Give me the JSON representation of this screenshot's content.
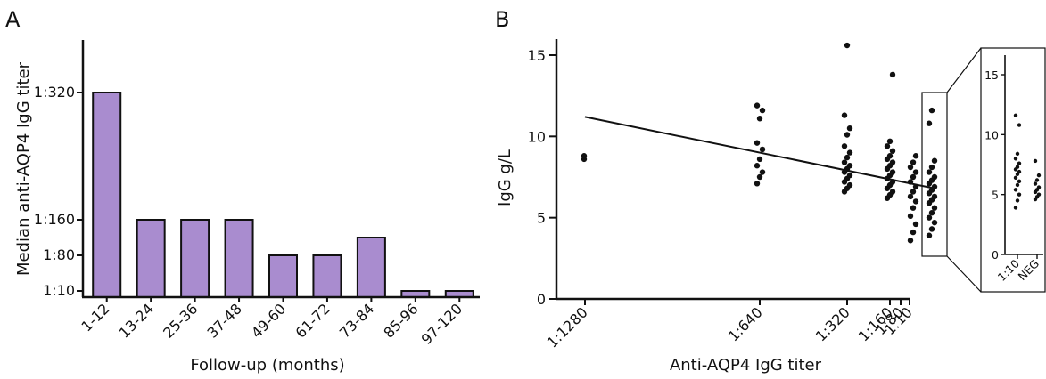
{
  "chart_data": [
    {
      "panel_label": "A",
      "type": "bar",
      "xlabel": "Follow-up (months)",
      "ylabel": "Median anti-AQP4 IgG titer",
      "categories": [
        "1-12",
        "13-24",
        "25-36",
        "37-48",
        "49-60",
        "61-72",
        "73-84",
        "85-96",
        "97-120"
      ],
      "y_tick_labels": [
        "1:10",
        "1:80",
        "1:160",
        "1:320"
      ],
      "values": [
        "1:320",
        "1:160",
        "1:160",
        "1:160",
        "1:80",
        "1:80",
        "1:120",
        "1:10",
        "1:10"
      ],
      "bar_color": "#a98ccf",
      "grid": false
    },
    {
      "panel_label": "B",
      "type": "scatter",
      "xlabel": "Anti-AQP4 IgG titer",
      "ylabel": "IgG g/L",
      "x_tick_labels": [
        "1:1280",
        "1:640",
        "1:320",
        "1:160",
        "1:80",
        "1:10"
      ],
      "ylim": [
        0,
        16
      ],
      "y_ticks": [
        0,
        5,
        10,
        15
      ],
      "points": [
        {
          "x": "1:1280",
          "y": [
            8.6,
            8.8
          ]
        },
        {
          "x": "1:640",
          "y": [
            7.1,
            7.5,
            7.8,
            8.2,
            8.6,
            9.2,
            9.6,
            11.1,
            11.6,
            11.9
          ]
        },
        {
          "x": "1:320",
          "y": [
            6.6,
            6.8,
            7.0,
            7.2,
            7.4,
            7.6,
            7.8,
            8.0,
            8.2,
            8.4,
            8.7,
            9.0,
            9.4,
            10.1,
            10.5,
            11.3,
            15.6
          ]
        },
        {
          "x": "1:160",
          "y": [
            6.2,
            6.4,
            6.6,
            6.8,
            7.0,
            7.2,
            7.4,
            7.6,
            7.8,
            8.0,
            8.2,
            8.4,
            8.6,
            8.8,
            9.1,
            9.4,
            9.7,
            13.8
          ]
        },
        {
          "x": "1:80",
          "y": [
            3.6,
            4.1,
            4.6,
            5.1,
            5.6,
            6.0,
            6.3,
            6.6,
            6.9,
            7.2,
            7.5,
            7.8,
            8.1,
            8.4,
            8.8
          ]
        },
        {
          "x": "1:10",
          "y": [
            3.9,
            4.3,
            4.7,
            5.0,
            5.3,
            5.6,
            5.9,
            6.1,
            6.3,
            6.5,
            6.7,
            6.9,
            7.1,
            7.3,
            7.5,
            7.8,
            8.1,
            8.5,
            10.8,
            11.6
          ]
        }
      ],
      "regression_line": {
        "x": [
          "1:1280",
          "1:10"
        ],
        "y": [
          11.2,
          6.8
        ]
      },
      "grid": false
    },
    {
      "type": "scatter",
      "inset_of": "B",
      "x_tick_labels": [
        "1:10",
        "NEG"
      ],
      "ylim": [
        0,
        16
      ],
      "y_ticks": [
        0,
        5,
        10,
        15
      ],
      "points": [
        {
          "x": "1:10",
          "y": [
            3.9,
            4.5,
            5.0,
            5.4,
            5.8,
            6.1,
            6.4,
            6.7,
            6.9,
            7.1,
            7.3,
            7.6,
            8.0,
            8.4,
            10.8,
            11.6
          ]
        },
        {
          "x": "NEG",
          "y": [
            4.6,
            4.8,
            5.0,
            5.2,
            5.4,
            5.6,
            5.9,
            6.2,
            6.6,
            7.8
          ]
        }
      ]
    }
  ]
}
